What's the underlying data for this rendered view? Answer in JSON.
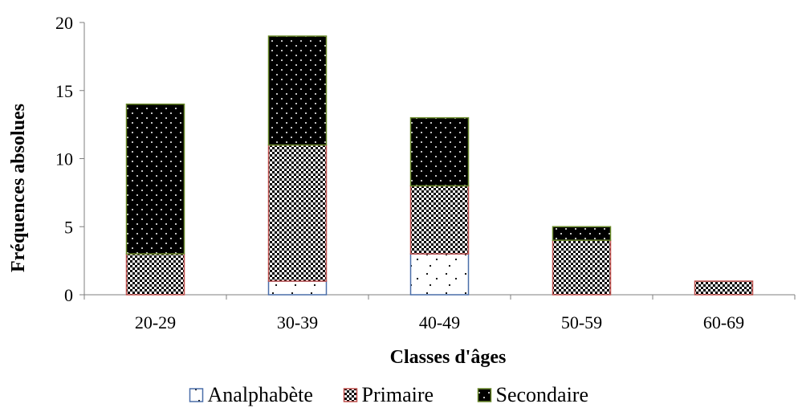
{
  "chart_data": {
    "type": "bar",
    "stacked": true,
    "title": "",
    "xlabel": "Classes d'âges",
    "ylabel": "Fréquences absolues",
    "categories": [
      "20-29",
      "30-39",
      "40-49",
      "50-59",
      "60-69"
    ],
    "ylim": [
      0,
      20
    ],
    "yticks": [
      0,
      5,
      10,
      15,
      20
    ],
    "grid": false,
    "legend_position": "bottom",
    "series": [
      {
        "name": "Analphabète",
        "values": [
          0,
          1,
          3,
          0,
          0
        ],
        "color": "#4a6ea9",
        "pattern": "sparse-dots"
      },
      {
        "name": "Primaire",
        "values": [
          3,
          10,
          5,
          4,
          1
        ],
        "color": "#c0504d",
        "pattern": "checkerboard"
      },
      {
        "name": "Secondaire",
        "values": [
          11,
          8,
          5,
          1,
          0
        ],
        "color": "#6a8a2a",
        "pattern": "black-dots"
      }
    ]
  }
}
